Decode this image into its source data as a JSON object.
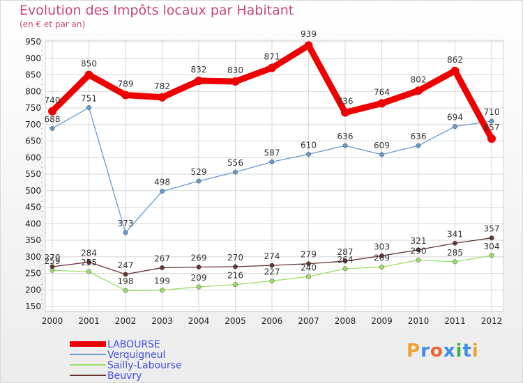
{
  "title": "Evolution des Impôts locaux par Habitant",
  "subtitle": "(en € et par an)",
  "chart_data": {
    "type": "line",
    "title": "Evolution des Impôts locaux par Habitant",
    "subtitle": "(en € et par an)",
    "x": [
      "2000",
      "2001",
      "2002",
      "2003",
      "2004",
      "2005",
      "2006",
      "2007",
      "2008",
      "2009",
      "2010",
      "2011",
      "2012"
    ],
    "yticks": [
      150,
      200,
      250,
      300,
      350,
      400,
      450,
      500,
      550,
      600,
      650,
      700,
      750,
      800,
      850,
      900,
      950
    ],
    "ylim": [
      150,
      950
    ],
    "grid": true,
    "legend_position": "bottom-left",
    "series": [
      {
        "name": "LABOURSE",
        "color": "#ee0000",
        "values": [
          740,
          850,
          789,
          782,
          832,
          830,
          871,
          939,
          736,
          764,
          802,
          862,
          657
        ]
      },
      {
        "name": "Verquigneul",
        "color": "#6699cc",
        "values": [
          688,
          751,
          373,
          498,
          529,
          556,
          587,
          610,
          636,
          609,
          636,
          694,
          710
        ]
      },
      {
        "name": "Sailly-Labourse",
        "color": "#99dd66",
        "values": [
          259,
          255,
          198,
          199,
          209,
          216,
          227,
          240,
          264,
          269,
          290,
          285,
          304
        ]
      },
      {
        "name": "Beuvry",
        "color": "#663333",
        "values": [
          270,
          284,
          247,
          267,
          269,
          270,
          274,
          279,
          287,
          303,
          321,
          341,
          357
        ]
      }
    ],
    "point_labels": {
      "LABOURSE": [
        "740",
        "850",
        "789",
        "782",
        "832",
        "830",
        "871",
        "939",
        "736",
        "764",
        "802",
        "862",
        "657"
      ],
      "Verquigneul": [
        "688",
        "751",
        "373",
        "498",
        "529",
        "556",
        "587",
        "610",
        "636",
        "609",
        "636",
        "694",
        "710"
      ],
      "Sailly-Labourse": [
        "259",
        "255",
        "198",
        "199",
        "209",
        "216",
        "227",
        "240",
        "264",
        "269",
        "290",
        "285",
        "304"
      ],
      "Beuvry": [
        "270",
        "284",
        "247",
        "267",
        "269",
        "270",
        "274",
        "279",
        "287",
        "303",
        "321",
        "341",
        "357"
      ]
    }
  },
  "legend": [
    {
      "label": "LABOURSE",
      "color": "#ee0000"
    },
    {
      "label": "Verquigneul",
      "color": "#6699cc"
    },
    {
      "label": "Sailly-Labourse",
      "color": "#99dd66"
    },
    {
      "label": "Beuvry",
      "color": "#663333"
    }
  ],
  "logo": {
    "text": "Proxiti",
    "colors": [
      "#f0a030",
      "#3c8ee8",
      "#f06030",
      "#3c8ee8",
      "#40b040",
      "#3c8ee8",
      "#f0a030"
    ]
  }
}
